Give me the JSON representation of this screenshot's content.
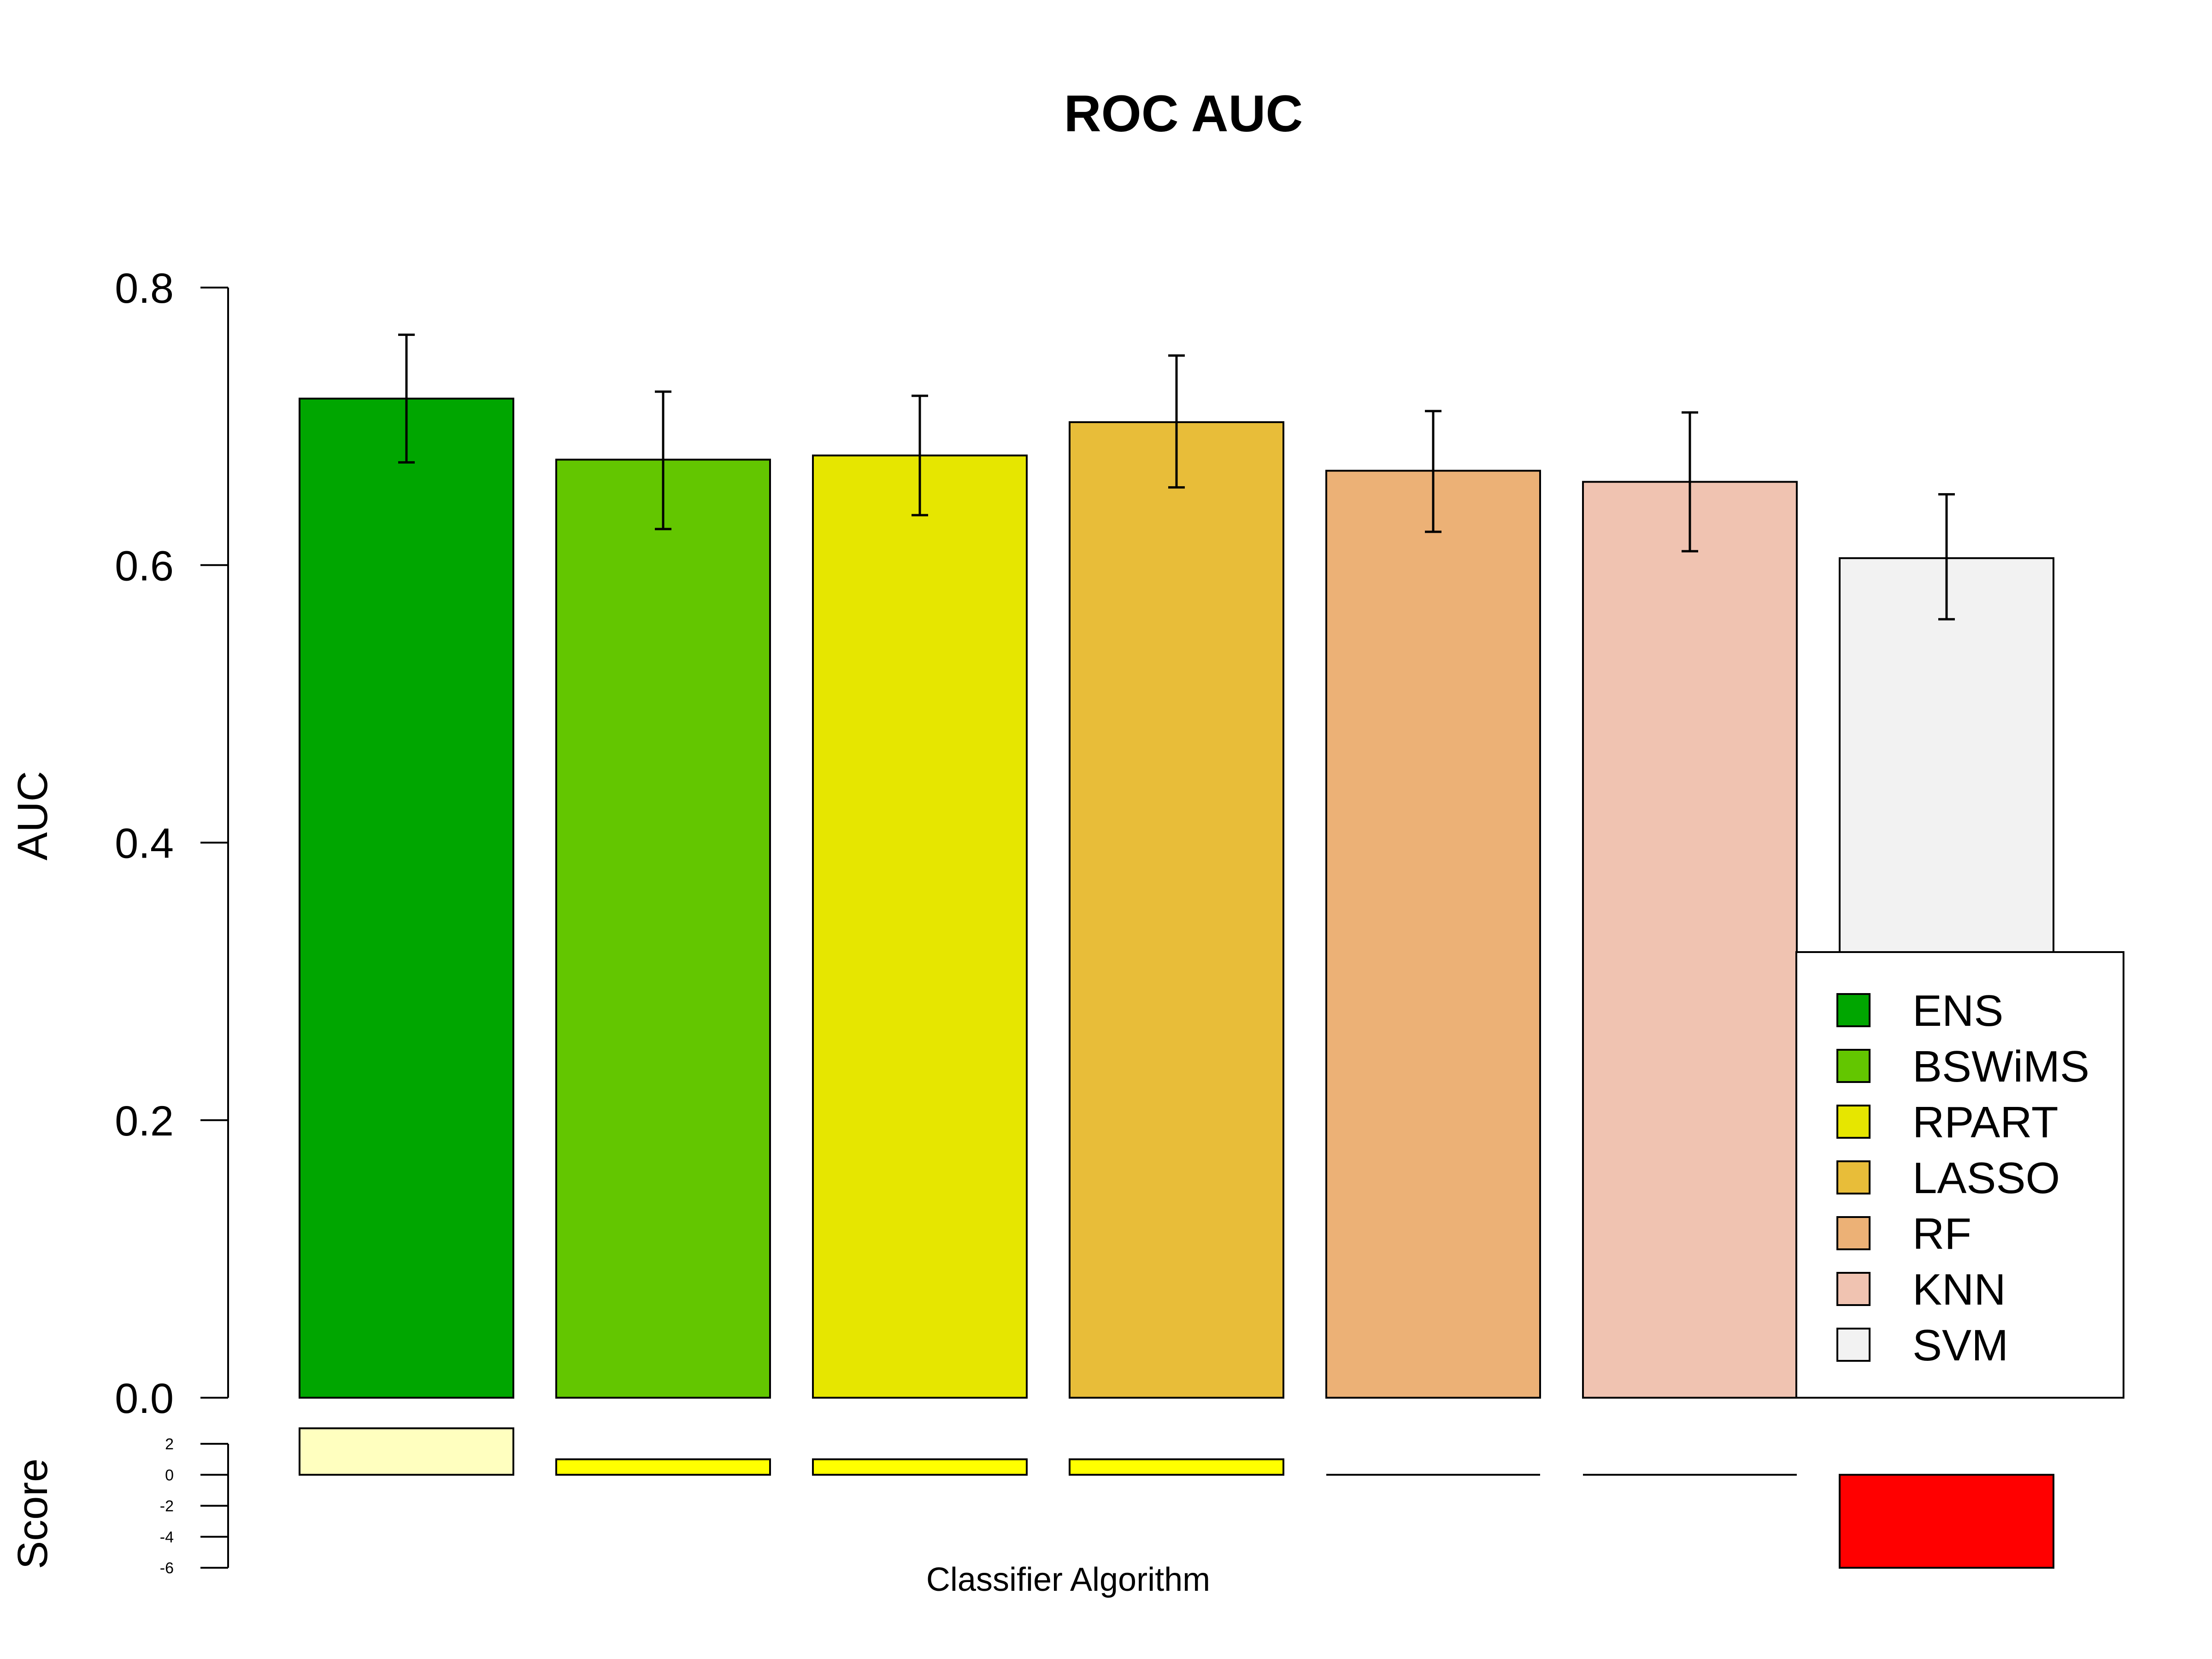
{
  "chart_data": {
    "type": "bar",
    "title": "ROC AUC",
    "xlabel": "Classifier Algorithm",
    "ylabel": "AUC",
    "categories": [
      "ENS",
      "BSWiMS",
      "RPART",
      "LASSO",
      "RF",
      "KNN",
      "SVM"
    ],
    "values": [
      0.72,
      0.676,
      0.679,
      0.703,
      0.668,
      0.66,
      0.605
    ],
    "error_low": [
      0.674,
      0.626,
      0.636,
      0.656,
      0.624,
      0.61,
      0.561
    ],
    "error_high": [
      0.766,
      0.725,
      0.722,
      0.751,
      0.711,
      0.71,
      0.651
    ],
    "colors": [
      "#00A600",
      "#63C600",
      "#E6E600",
      "#E8BD39",
      "#ECB176",
      "#F0C3B1",
      "#F2F2F2"
    ],
    "ylim": [
      0,
      0.8
    ],
    "yticks": [
      "0.0",
      "0.2",
      "0.4",
      "0.6",
      "0.8"
    ],
    "grid": false,
    "legend": {
      "position": "bottom-right",
      "entries": [
        "ENS",
        "BSWiMS",
        "RPART",
        "LASSO",
        "RF",
        "KNN",
        "SVM"
      ]
    },
    "score": {
      "ylabel": "Score",
      "values": [
        3,
        1,
        1,
        1,
        0,
        0,
        -6
      ],
      "colors": [
        "#FFFFBF",
        "#FFFF00",
        "#FFFF00",
        "#FFFF00",
        "#FFFFFF",
        "#FFFFFF",
        "#FF0000"
      ],
      "ylim": [
        -6,
        2
      ],
      "yticks": [
        "2",
        "0",
        "-2",
        "-4",
        "-6"
      ]
    }
  }
}
